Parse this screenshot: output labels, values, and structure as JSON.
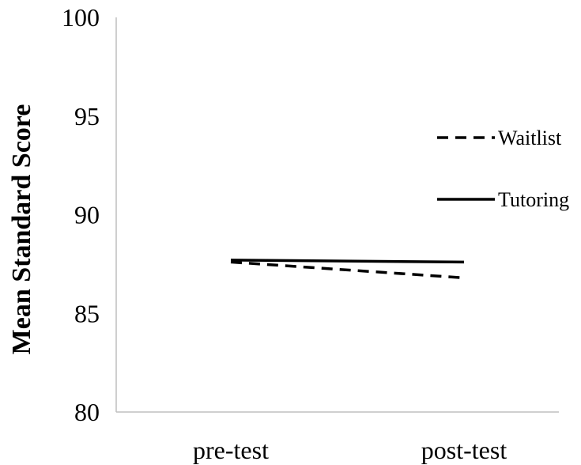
{
  "chart_data": {
    "type": "line",
    "categories": [
      "pre-test",
      "post-test"
    ],
    "series": [
      {
        "name": "Waitlist",
        "values": [
          87.6,
          86.8
        ],
        "style": "dashed",
        "color": "#000000"
      },
      {
        "name": "Tutoring",
        "values": [
          87.7,
          87.6
        ],
        "style": "solid",
        "color": "#000000"
      }
    ],
    "ylabel": "Mean Standard Score",
    "xlabel": "",
    "ylim": [
      80,
      100
    ],
    "yticks": [
      "80",
      "85",
      "90",
      "95",
      "100"
    ],
    "grid": false,
    "legend_position": "right"
  }
}
